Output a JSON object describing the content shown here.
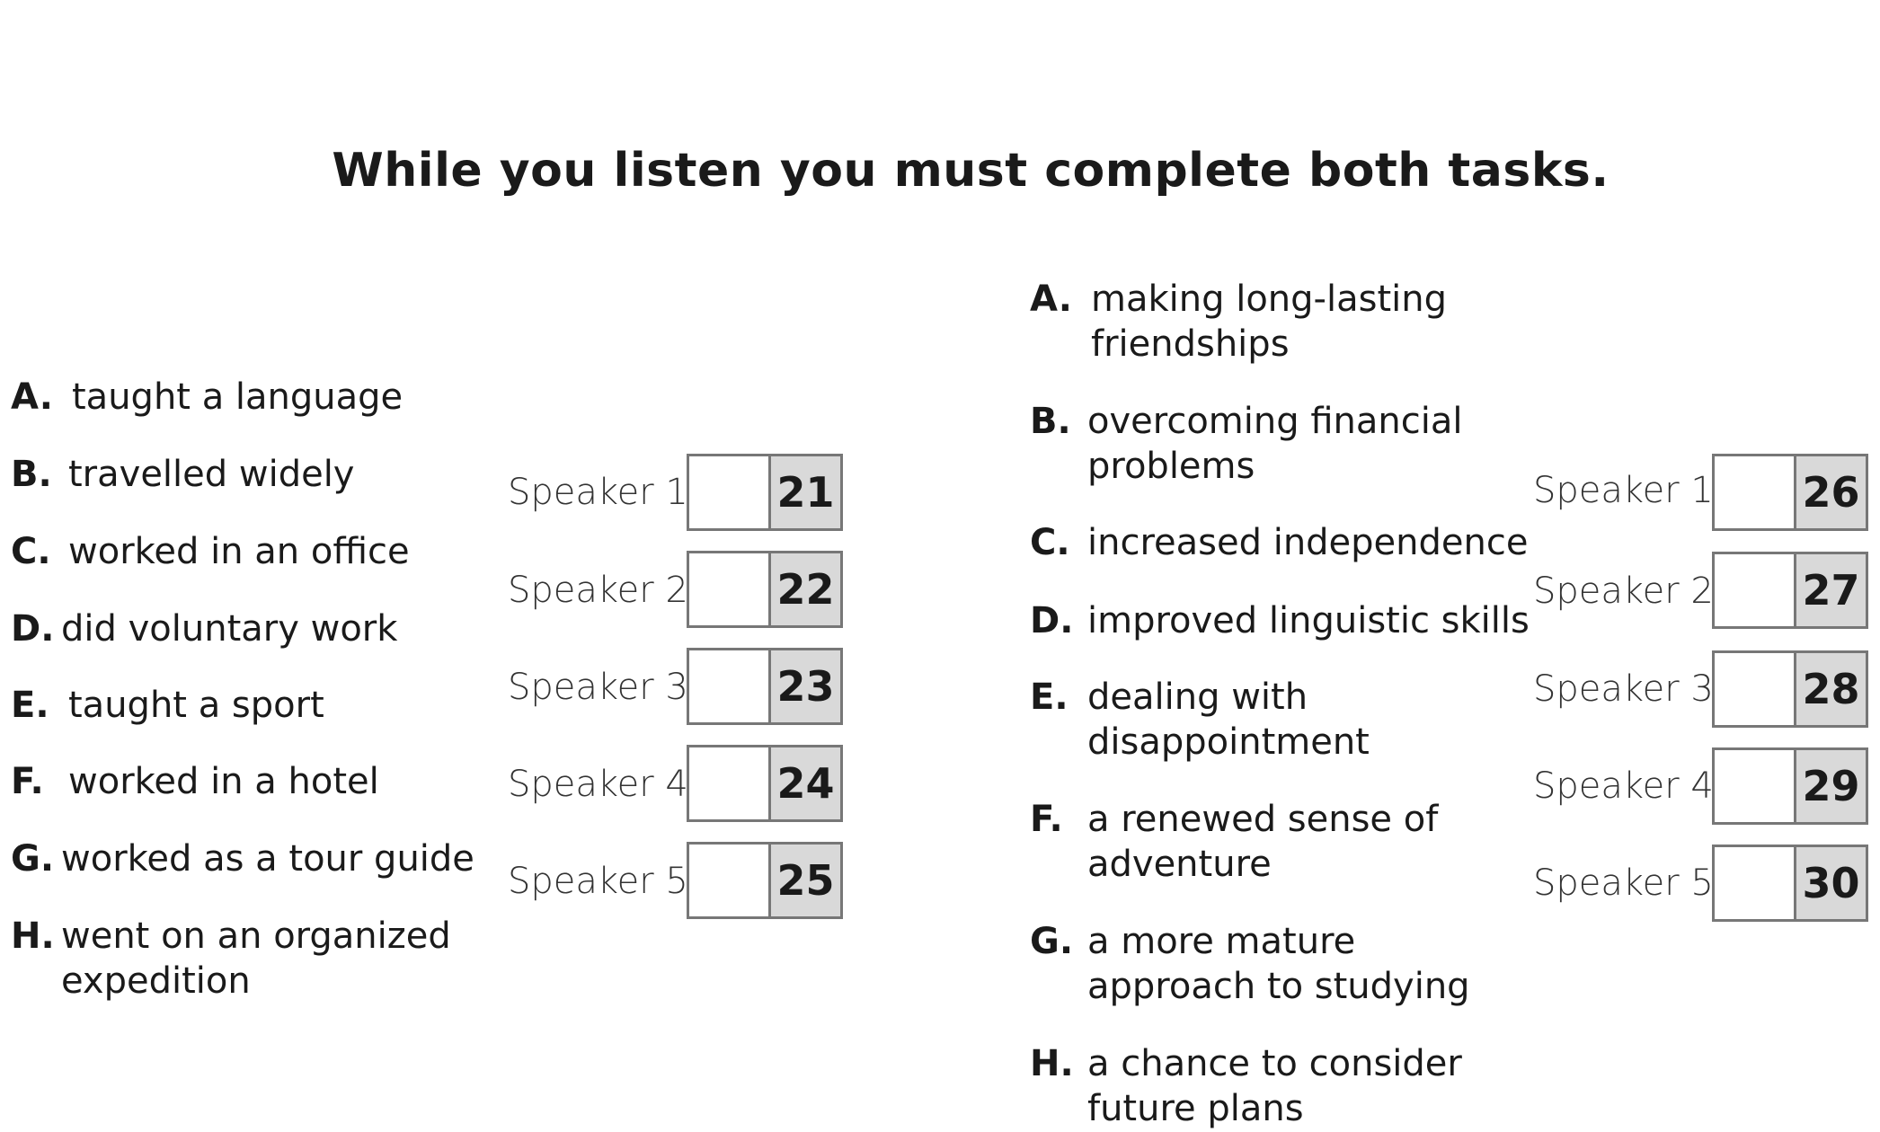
{
  "heading": "While you listen you must complete both tasks.",
  "task1": {
    "options": [
      {
        "letter": "A.",
        "text": "taught a language"
      },
      {
        "letter": "B.",
        "text": "travelled widely"
      },
      {
        "letter": "C.",
        "text": "worked in an office"
      },
      {
        "letter": "D.",
        "text": "did voluntary work"
      },
      {
        "letter": "E.",
        "text": "taught a sport"
      },
      {
        "letter": "F.",
        "text": "worked in a hotel"
      },
      {
        "letter": "G.",
        "text": "worked as a tour guide"
      },
      {
        "letter": "H.",
        "text": "went on an organized",
        "text2": "expedition"
      }
    ],
    "speakers": [
      {
        "label": "Speaker 1",
        "number": "21"
      },
      {
        "label": "Speaker 2",
        "number": "22"
      },
      {
        "label": "Speaker 3",
        "number": "23"
      },
      {
        "label": "Speaker 4",
        "number": "24"
      },
      {
        "label": "Speaker 5",
        "number": "25"
      }
    ]
  },
  "task2": {
    "options": [
      {
        "letter": "A.",
        "text": "making long-lasting",
        "text2": "friendships"
      },
      {
        "letter": "B.",
        "text": "overcoming financial",
        "text2": "problems"
      },
      {
        "letter": "C.",
        "text": "increased independence"
      },
      {
        "letter": "D.",
        "text": "improved linguistic skills"
      },
      {
        "letter": "E.",
        "text": "dealing with",
        "text2": "disappointment"
      },
      {
        "letter": "F.",
        "text": "a renewed sense of",
        "text2": "adventure"
      },
      {
        "letter": "G.",
        "text": "a more mature",
        "text2": "approach to studying"
      },
      {
        "letter": "H.",
        "text": "a chance to consider",
        "text2": "future plans"
      }
    ],
    "speakers": [
      {
        "label": "Speaker 1",
        "number": "26"
      },
      {
        "label": "Speaker 2",
        "number": "27"
      },
      {
        "label": "Speaker 3",
        "number": "28"
      },
      {
        "label": "Speaker 4",
        "number": "29"
      },
      {
        "label": "Speaker 5",
        "number": "30"
      }
    ]
  }
}
